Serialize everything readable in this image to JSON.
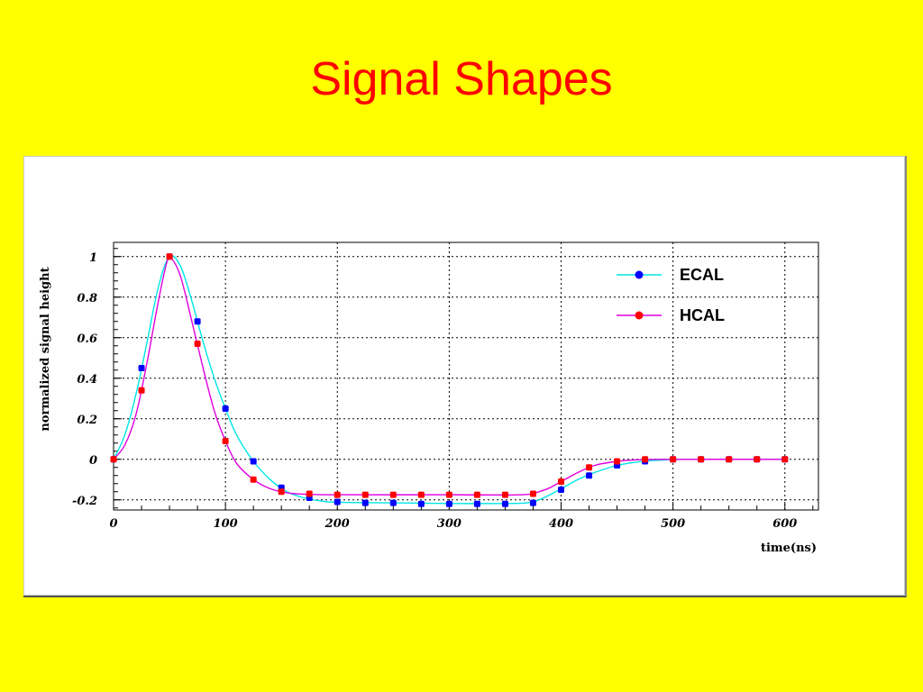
{
  "slide": {
    "title": "Signal Shapes"
  },
  "colors": {
    "background": "#ffff00",
    "title": "#ff0000",
    "ecal_line": "#00e5e5",
    "ecal_marker": "#0000ff",
    "hcal_line": "#e000e0",
    "hcal_marker": "#ff0000"
  },
  "chart_data": {
    "type": "line",
    "title": "",
    "xlabel": "time(ns)",
    "ylabel": "normalized signal height",
    "xlim": [
      0,
      630
    ],
    "ylim": [
      -0.25,
      1.07
    ],
    "xticks": [
      0,
      100,
      200,
      300,
      400,
      500,
      600
    ],
    "xtick_labels": [
      "0",
      "100",
      "200",
      "300",
      "400",
      "500",
      "600"
    ],
    "yticks": [
      -0.2,
      0,
      0.2,
      0.4,
      0.6,
      0.8,
      1
    ],
    "ytick_labels": [
      "-0.2",
      "0",
      "0.2",
      "0.4",
      "0.6",
      "0.8",
      "1"
    ],
    "grid": true,
    "legend_position": "top-right",
    "series": [
      {
        "name": "ECAL",
        "line_color": "#00e5e5",
        "marker_color": "#0000ff",
        "points": [
          [
            0,
            0
          ],
          [
            25,
            0.45
          ],
          [
            50,
            1.0
          ],
          [
            75,
            0.68
          ],
          [
            100,
            0.25
          ],
          [
            125,
            -0.01
          ],
          [
            150,
            -0.14
          ],
          [
            175,
            -0.19
          ],
          [
            200,
            -0.21
          ],
          [
            225,
            -0.215
          ],
          [
            250,
            -0.215
          ],
          [
            275,
            -0.22
          ],
          [
            300,
            -0.22
          ],
          [
            325,
            -0.22
          ],
          [
            350,
            -0.22
          ],
          [
            375,
            -0.215
          ],
          [
            400,
            -0.15
          ],
          [
            425,
            -0.08
          ],
          [
            450,
            -0.03
          ],
          [
            475,
            -0.01
          ],
          [
            500,
            0
          ],
          [
            525,
            0
          ],
          [
            550,
            0
          ],
          [
            575,
            0
          ],
          [
            600,
            0
          ]
        ],
        "curve": [
          [
            0,
            0
          ],
          [
            10,
            0.12
          ],
          [
            20,
            0.32
          ],
          [
            30,
            0.58
          ],
          [
            40,
            0.85
          ],
          [
            50,
            1.0
          ],
          [
            60,
            0.95
          ],
          [
            70,
            0.78
          ],
          [
            80,
            0.58
          ],
          [
            90,
            0.4
          ],
          [
            100,
            0.25
          ],
          [
            110,
            0.12
          ],
          [
            125,
            -0.01
          ],
          [
            140,
            -0.1
          ],
          [
            155,
            -0.16
          ],
          [
            170,
            -0.19
          ],
          [
            185,
            -0.205
          ],
          [
            200,
            -0.212
          ],
          [
            250,
            -0.215
          ],
          [
            300,
            -0.218
          ],
          [
            350,
            -0.218
          ],
          [
            370,
            -0.215
          ],
          [
            380,
            -0.2
          ],
          [
            390,
            -0.175
          ],
          [
            400,
            -0.145
          ],
          [
            415,
            -0.1
          ],
          [
            430,
            -0.065
          ],
          [
            450,
            -0.03
          ],
          [
            470,
            -0.012
          ],
          [
            490,
            -0.004
          ],
          [
            510,
            0
          ],
          [
            600,
            0
          ]
        ]
      },
      {
        "name": "HCAL",
        "line_color": "#e000e0",
        "marker_color": "#ff0000",
        "points": [
          [
            0,
            0
          ],
          [
            25,
            0.34
          ],
          [
            50,
            1.0
          ],
          [
            75,
            0.57
          ],
          [
            100,
            0.09
          ],
          [
            125,
            -0.1
          ],
          [
            150,
            -0.16
          ],
          [
            175,
            -0.17
          ],
          [
            200,
            -0.175
          ],
          [
            225,
            -0.175
          ],
          [
            250,
            -0.175
          ],
          [
            275,
            -0.175
          ],
          [
            300,
            -0.175
          ],
          [
            325,
            -0.175
          ],
          [
            350,
            -0.175
          ],
          [
            375,
            -0.17
          ],
          [
            400,
            -0.11
          ],
          [
            425,
            -0.04
          ],
          [
            450,
            -0.01
          ],
          [
            475,
            0
          ],
          [
            500,
            0
          ],
          [
            525,
            0
          ],
          [
            550,
            0
          ],
          [
            575,
            0
          ],
          [
            600,
            0
          ]
        ],
        "curve": [
          [
            0,
            0
          ],
          [
            10,
            0.07
          ],
          [
            20,
            0.22
          ],
          [
            30,
            0.48
          ],
          [
            40,
            0.78
          ],
          [
            48,
            0.98
          ],
          [
            52,
            0.99
          ],
          [
            60,
            0.9
          ],
          [
            70,
            0.68
          ],
          [
            80,
            0.45
          ],
          [
            90,
            0.24
          ],
          [
            100,
            0.09
          ],
          [
            110,
            -0.02
          ],
          [
            125,
            -0.1
          ],
          [
            140,
            -0.145
          ],
          [
            155,
            -0.165
          ],
          [
            170,
            -0.172
          ],
          [
            200,
            -0.175
          ],
          [
            300,
            -0.175
          ],
          [
            365,
            -0.175
          ],
          [
            380,
            -0.16
          ],
          [
            390,
            -0.14
          ],
          [
            400,
            -0.11
          ],
          [
            415,
            -0.065
          ],
          [
            430,
            -0.03
          ],
          [
            450,
            -0.01
          ],
          [
            470,
            -0.002
          ],
          [
            490,
            0
          ],
          [
            600,
            0
          ]
        ]
      }
    ]
  }
}
